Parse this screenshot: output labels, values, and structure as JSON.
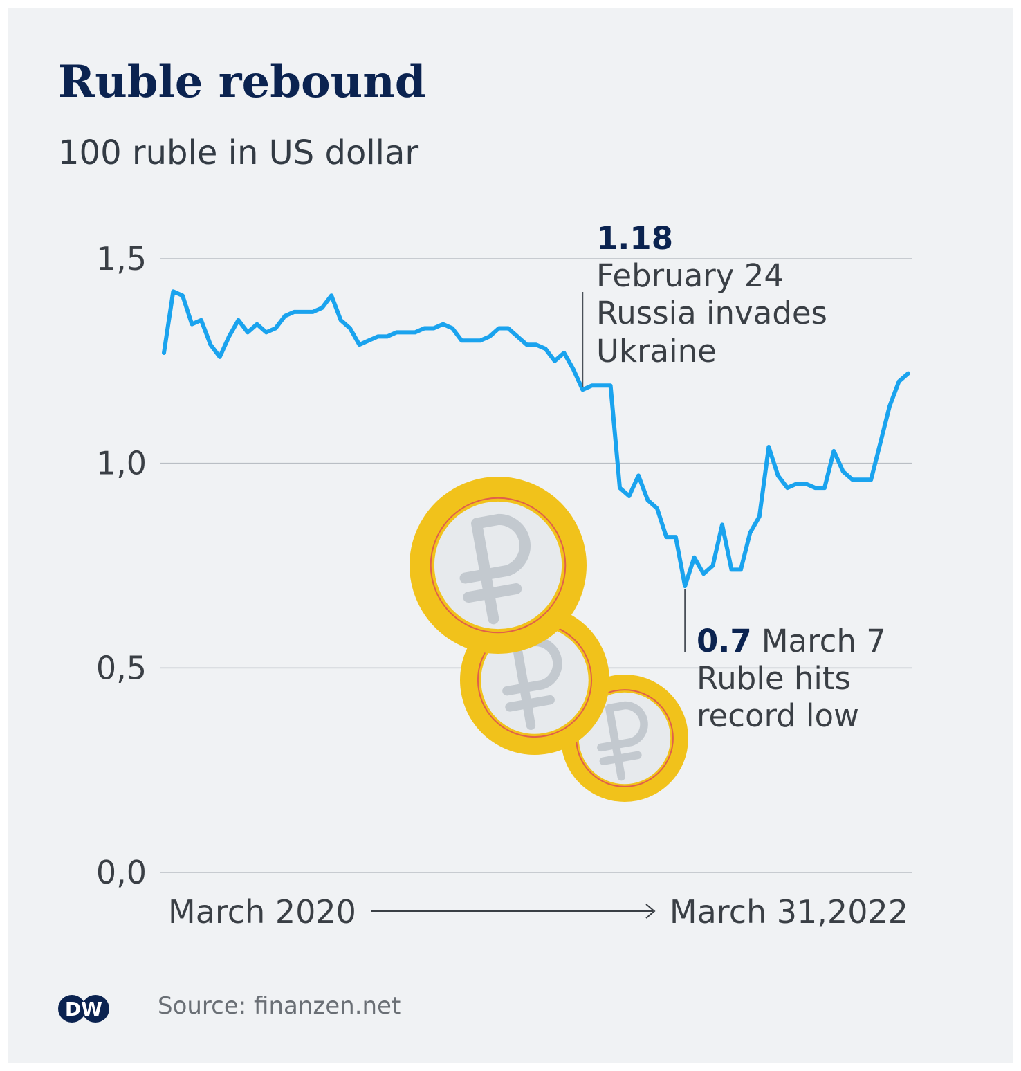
{
  "header": {
    "title": "Ruble rebound",
    "subtitle": "100 ruble in US dollar"
  },
  "footer": {
    "source": "Source: finanzen.net",
    "logo": "DW"
  },
  "colors": {
    "line": "#1aa3ee",
    "title": "#0b2350",
    "coin_ring": "#f1c21b",
    "coin_face": "#e7eaed",
    "ruble_sign": "#c3c9cf"
  },
  "icons": [
    "ruble-coin-icon",
    "ruble-coin-icon",
    "ruble-coin-icon"
  ],
  "chart_data": {
    "type": "line",
    "title": "Ruble rebound",
    "subtitle": "100 ruble in US dollar",
    "ylim": [
      0,
      1.5
    ],
    "y_ticks": [
      {
        "value": 0,
        "label": "0,0"
      },
      {
        "value": 0.5,
        "label": "0,5"
      },
      {
        "value": 1.0,
        "label": "1,0"
      },
      {
        "value": 1.5,
        "label": "1,5"
      }
    ],
    "x_start_label": "March 2020",
    "x_end_label": "March 31,2022",
    "grid": true,
    "legend": "none",
    "series": [
      {
        "values": [
          1.27,
          1.42,
          1.41,
          1.34,
          1.35,
          1.29,
          1.26,
          1.31,
          1.35,
          1.32,
          1.34,
          1.32,
          1.33,
          1.36,
          1.37,
          1.37,
          1.37,
          1.38,
          1.41,
          1.35,
          1.33,
          1.29,
          1.3,
          1.31,
          1.31,
          1.32,
          1.32,
          1.32,
          1.33,
          1.33,
          1.34,
          1.33,
          1.3,
          1.3,
          1.3,
          1.31,
          1.33,
          1.33,
          1.31,
          1.29,
          1.29,
          1.28,
          1.25,
          1.27,
          1.23,
          1.18,
          1.19,
          1.19,
          1.19,
          0.94,
          0.92,
          0.97,
          0.91,
          0.89,
          0.82,
          0.82,
          0.7,
          0.77,
          0.73,
          0.75,
          0.85,
          0.74,
          0.74,
          0.83,
          0.87,
          1.04,
          0.97,
          0.94,
          0.95,
          0.95,
          0.94,
          0.94,
          1.03,
          0.98,
          0.96,
          0.96,
          0.96,
          1.05,
          1.14,
          1.2,
          1.22
        ]
      }
    ],
    "annotations": [
      {
        "index": 45,
        "value_label": "1.18",
        "lines": [
          "February 24",
          "Russia invades",
          "Ukraine"
        ]
      },
      {
        "index": 56,
        "value_label": "0.7",
        "first_line": "March 7",
        "lines": [
          "Ruble hits",
          "record low"
        ]
      }
    ]
  }
}
